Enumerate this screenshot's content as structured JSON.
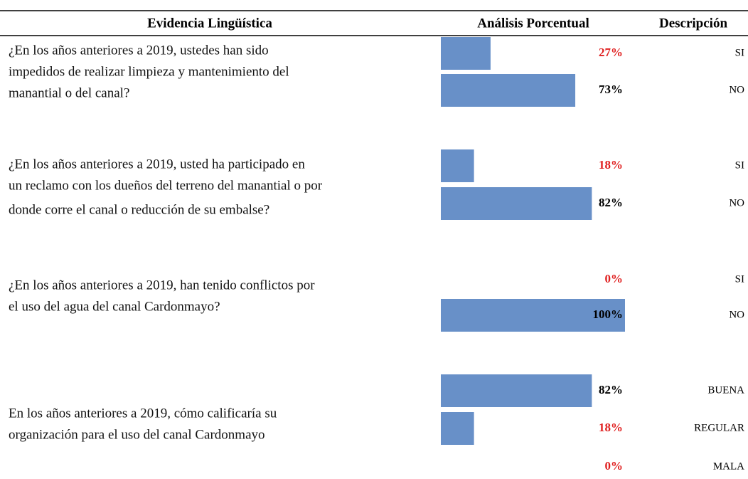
{
  "header": [
    "Evidencia Lingüística",
    "Análisis Porcentual",
    "Descripción"
  ],
  "bar_color": "#6890c8",
  "scale_max": 100,
  "groups": [
    {
      "question_lines": [
        "¿En los años anteriores a 2019, ustedes han sido",
        "impedidos de realizar limpieza y mantenimiento del",
        "manantial o del canal?"
      ],
      "rows": [
        {
          "value": 27,
          "value_label": "27%",
          "color": "#e02020",
          "description": "SI"
        },
        {
          "value": 73,
          "value_label": "73%",
          "color": "#000000",
          "description": "NO"
        }
      ]
    },
    {
      "question_lines": [
        "¿En los años anteriores a 2019, usted ha participado en",
        "un reclamo con los dueños del terreno del manantial o por",
        "donde corre el canal o reducción de su embalse?"
      ],
      "rows": [
        {
          "value": 18,
          "value_label": "18%",
          "color": "#e02020",
          "description": "SI"
        },
        {
          "value": 82,
          "value_label": "82%",
          "color": "#000000",
          "description": "NO"
        }
      ]
    },
    {
      "question_lines": [
        "¿En los años anteriores a 2019, han tenido conflictos por",
        "el uso del agua del canal Cardonmayo?"
      ],
      "rows": [
        {
          "value": 0,
          "value_label": "0%",
          "color": "#e02020",
          "description": "SI"
        },
        {
          "value": 100,
          "value_label": "100%",
          "color": "#000000",
          "description": "NO"
        }
      ]
    },
    {
      "question_lines": [
        "En los años anteriores a 2019, cómo calificaría su",
        "organización para el uso del canal Cardonmayo"
      ],
      "rows": [
        {
          "value": 82,
          "value_label": "82%",
          "color": "#000000",
          "description": "BUENA"
        },
        {
          "value": 18,
          "value_label": "18%",
          "color": "#e02020",
          "description": "REGULAR"
        },
        {
          "value": 0,
          "value_label": "0%",
          "color": "#e02020",
          "description": "MALA"
        }
      ]
    }
  ]
}
